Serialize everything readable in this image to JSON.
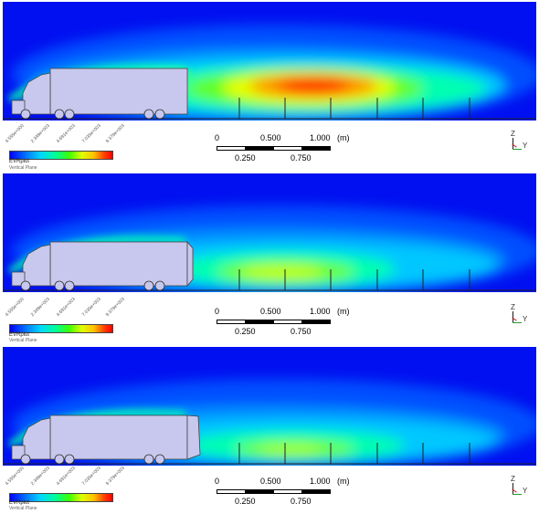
{
  "panels": [
    {
      "legend_ticks": [
        "4.555e+000",
        "2.348e+003",
        "4.691e+003",
        "7.035e+003",
        "9.379e+003"
      ],
      "legend_name": "EVRplot",
      "legend_sub": "Vertical Plane",
      "scale_labels": {
        "t0": "0",
        "t1": "0.500",
        "t2": "1.000",
        "unit": "(m)",
        "b1": "0.250",
        "b2": "0.750"
      },
      "axes": {
        "z": "Z",
        "y": "Y"
      }
    },
    {
      "legend_ticks": [
        "4.555e+000",
        "2.348e+003",
        "4.691e+003",
        "7.035e+003",
        "9.379e+003"
      ],
      "legend_name": "EVRplot",
      "legend_sub": "Vertical Plane",
      "scale_labels": {
        "t0": "0",
        "t1": "0.500",
        "t2": "1.000",
        "unit": "(m)",
        "b1": "0.250",
        "b2": "0.750"
      },
      "axes": {
        "z": "Z",
        "y": "Y"
      }
    },
    {
      "legend_ticks": [
        "4.555e+000",
        "2.348e+003",
        "4.691e+003",
        "7.035e+003",
        "9.379e+003"
      ],
      "legend_name": "EVRplot",
      "legend_sub": "Vertical Plane",
      "scale_labels": {
        "t0": "0",
        "t1": "0.500",
        "t2": "1.000",
        "unit": "(m)",
        "b1": "0.250",
        "b2": "0.750"
      },
      "axes": {
        "z": "Z",
        "y": "Y"
      }
    }
  ]
}
